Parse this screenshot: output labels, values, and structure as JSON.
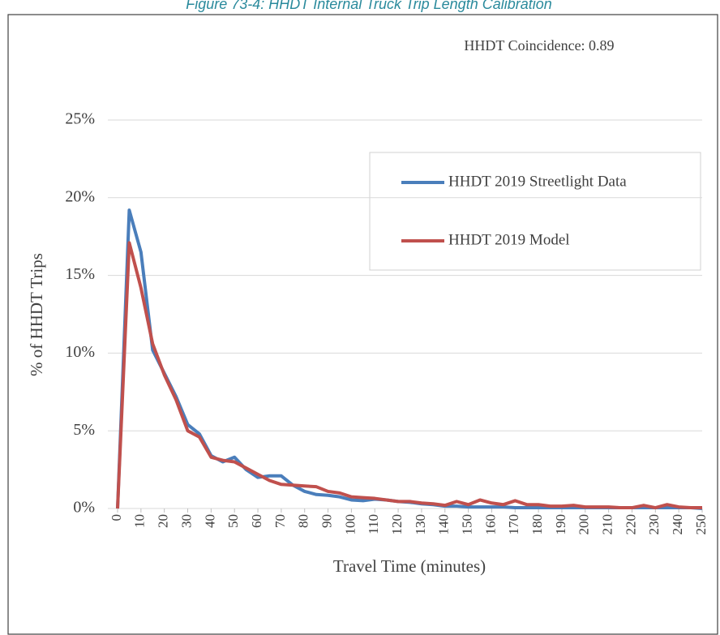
{
  "chart_data": {
    "type": "line",
    "title": "Figure 73-4: HHDT Internal Truck Trip Length Calibration",
    "annotation": "HHDT Coincidence: 0.89",
    "x_label": "Travel Time (minutes)",
    "y_label": "% of HHDT Trips",
    "x": [
      0,
      5,
      10,
      15,
      20,
      25,
      30,
      35,
      40,
      45,
      50,
      55,
      60,
      65,
      70,
      75,
      80,
      85,
      90,
      95,
      100,
      105,
      110,
      115,
      120,
      125,
      130,
      135,
      140,
      145,
      150,
      155,
      160,
      165,
      170,
      175,
      180,
      185,
      190,
      195,
      200,
      205,
      210,
      215,
      220,
      225,
      230,
      235,
      240,
      245,
      250
    ],
    "series": [
      {
        "name": "HHDT 2019 Streetlight Data",
        "color": "#4a7ebb",
        "values": [
          0,
          19.2,
          16.5,
          10.2,
          8.7,
          7.2,
          5.4,
          4.8,
          3.4,
          3.0,
          3.3,
          2.5,
          2.0,
          2.1,
          2.1,
          1.5,
          1.1,
          0.9,
          0.85,
          0.75,
          0.55,
          0.5,
          0.6,
          0.55,
          0.45,
          0.4,
          0.3,
          0.25,
          0.15,
          0.15,
          0.1,
          0.1,
          0.1,
          0.1,
          0.05,
          0.05,
          0.05,
          0.05,
          0.05,
          0.05,
          0.05,
          0.05,
          0.05,
          0.05,
          0.05,
          0.05,
          0.05,
          0.05,
          0.05,
          0.05,
          0
        ]
      },
      {
        "name": "HHDT 2019 Model",
        "color": "#c0504d",
        "values": [
          0,
          17.1,
          14.2,
          10.6,
          8.6,
          7.0,
          5.0,
          4.6,
          3.3,
          3.1,
          3.0,
          2.6,
          2.2,
          1.8,
          1.55,
          1.5,
          1.45,
          1.4,
          1.1,
          1.0,
          0.75,
          0.7,
          0.65,
          0.55,
          0.45,
          0.45,
          0.35,
          0.3,
          0.2,
          0.45,
          0.25,
          0.55,
          0.35,
          0.25,
          0.5,
          0.25,
          0.25,
          0.15,
          0.15,
          0.2,
          0.1,
          0.1,
          0.1,
          0.05,
          0.05,
          0.2,
          0.05,
          0.25,
          0.1,
          0.05,
          0.05
        ]
      }
    ],
    "xlim": [
      0,
      250
    ],
    "xticks": [
      0,
      10,
      20,
      30,
      40,
      50,
      60,
      70,
      80,
      90,
      100,
      110,
      120,
      130,
      140,
      150,
      160,
      170,
      180,
      190,
      200,
      210,
      220,
      230,
      240,
      250
    ],
    "ylim": [
      0,
      25
    ],
    "yticks": [
      {
        "value": 0,
        "label": "0%"
      },
      {
        "value": 5,
        "label": "5%"
      },
      {
        "value": 10,
        "label": "10%"
      },
      {
        "value": 15,
        "label": "15%"
      },
      {
        "value": 20,
        "label": "20%"
      },
      {
        "value": 25,
        "label": "25%"
      }
    ],
    "grid": true,
    "legend": "upper right"
  }
}
